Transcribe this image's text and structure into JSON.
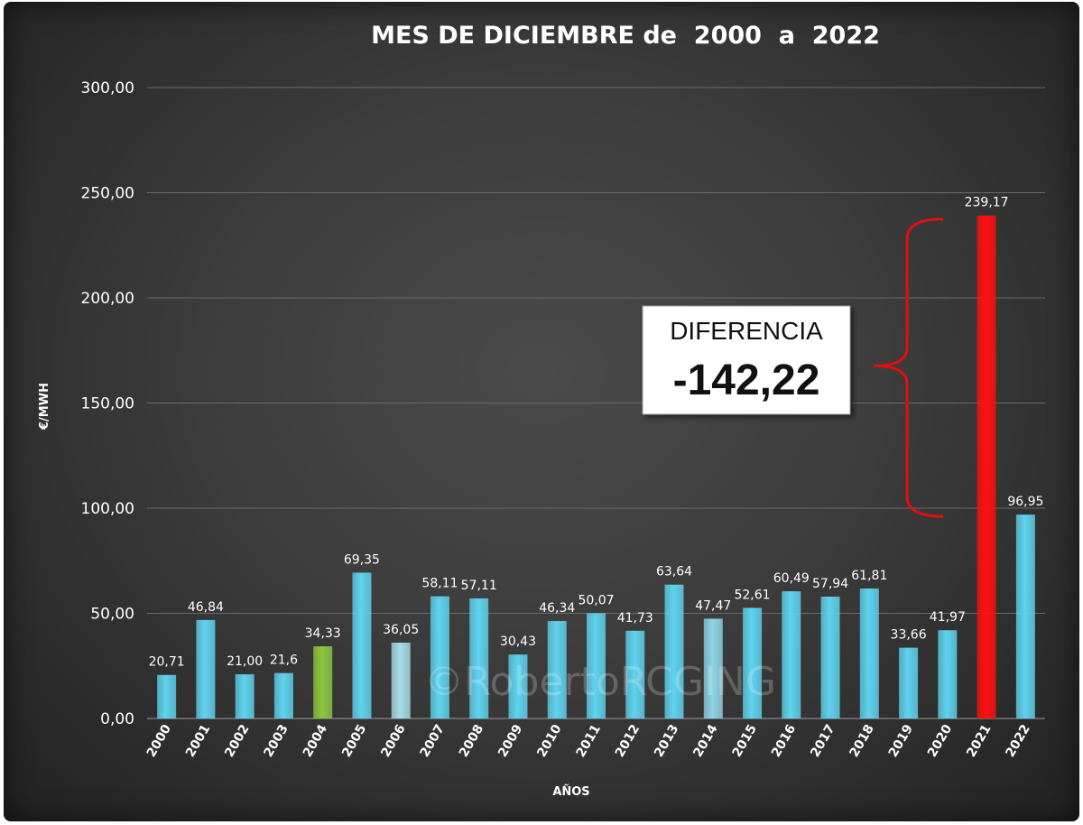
{
  "chart_data": {
    "type": "bar",
    "title": "MES DE DICIEMBRE de  2000  a  2022",
    "xlabel": "AÑOS",
    "ylabel": "€/MWH",
    "ylim": [
      0,
      300
    ],
    "yticks": [
      "0,00",
      "50,00",
      "100,00",
      "150,00",
      "200,00",
      "250,00",
      "300,00"
    ],
    "categories": [
      "2000",
      "2001",
      "2002",
      "2003",
      "2004",
      "2005",
      "2006",
      "2007",
      "2008",
      "2009",
      "2010",
      "2011",
      "2012",
      "2013",
      "2014",
      "2015",
      "2016",
      "2017",
      "2018",
      "2019",
      "2020",
      "2021",
      "2022"
    ],
    "values": [
      20.71,
      46.84,
      21.0,
      21.6,
      34.33,
      69.35,
      36.05,
      58.11,
      57.11,
      30.43,
      46.34,
      50.07,
      41.73,
      63.64,
      47.47,
      52.61,
      60.49,
      57.94,
      61.81,
      33.66,
      41.97,
      239.17,
      96.95
    ],
    "data_labels": [
      "20,71",
      "46,84",
      "21,00",
      "21,6",
      "34,33",
      "69,35",
      "36,05",
      "58,11",
      "57,11",
      "30,43",
      "46,34",
      "50,07",
      "41,73",
      "63,64",
      "47,47",
      "52,61",
      "60,49",
      "57,94",
      "61,81",
      "33,66",
      "41,97",
      "239,17",
      "96,95"
    ],
    "bar_colors": [
      "#5fd3ee",
      "#5fd3ee",
      "#5fd3ee",
      "#5fd3ee",
      "#8cc63f",
      "#5fd3ee",
      "#a9dcea",
      "#5fd3ee",
      "#5fd3ee",
      "#5fd3ee",
      "#5fd3ee",
      "#5fd3ee",
      "#5fd3ee",
      "#5fd3ee",
      "#8fd4e8",
      "#5fd3ee",
      "#5fd3ee",
      "#5fd3ee",
      "#5fd3ee",
      "#5fd3ee",
      "#5fd3ee",
      "#ff1010",
      "#5fd3ee"
    ],
    "grid": true,
    "legend": "none",
    "annotation": {
      "label": "DIFERENCIA",
      "value": "-142,22",
      "bracket_from": 96.95,
      "bracket_to": 239.17,
      "bracket_color": "#e01010"
    },
    "watermark": "©RobertoRCGING"
  }
}
